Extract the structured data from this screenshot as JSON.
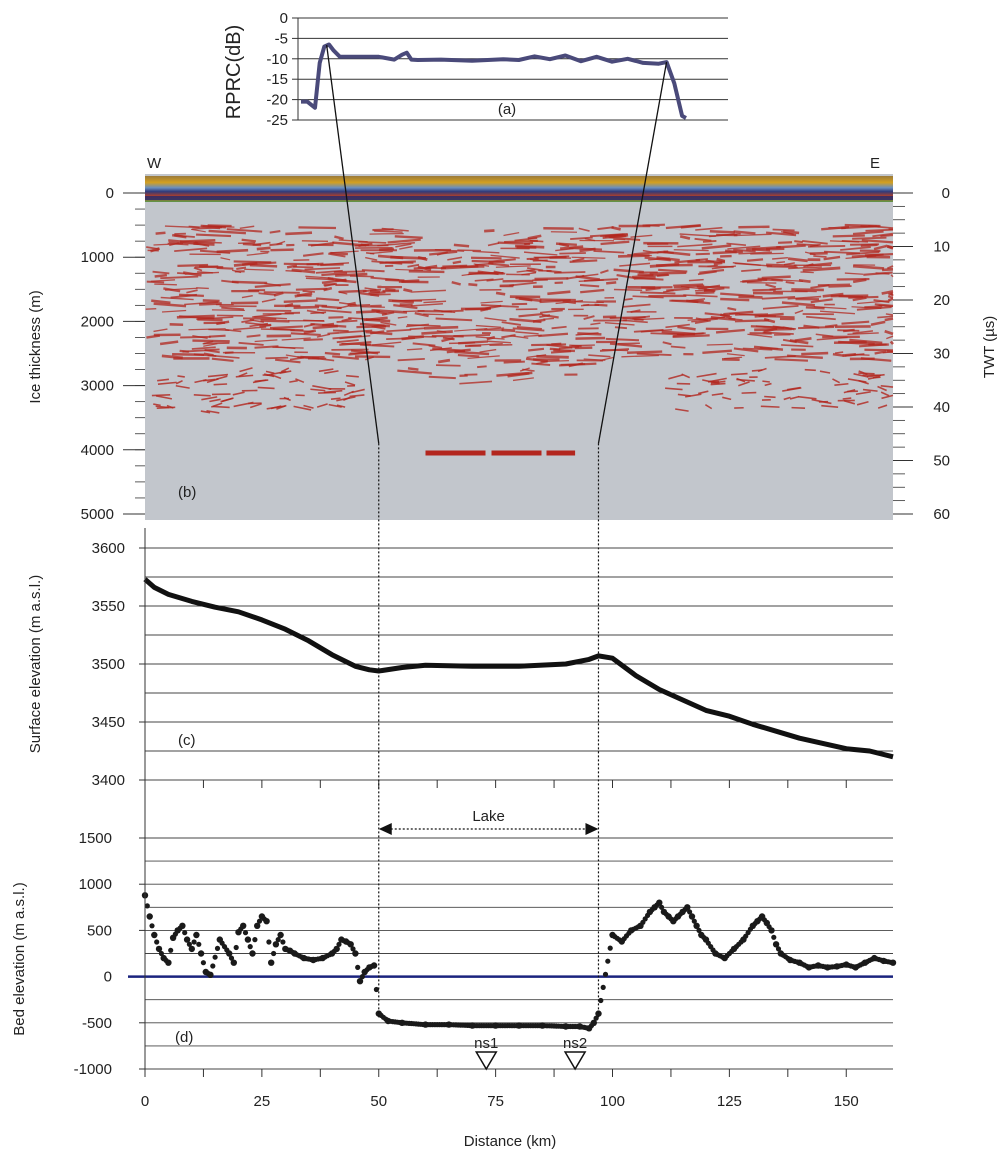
{
  "figure": {
    "label_a": "(a)",
    "label_b": "(b)",
    "label_c": "(c)",
    "label_d": "(d)",
    "west": "W",
    "east": "E",
    "lake_label": "Lake",
    "ns1": "ns1",
    "ns2": "ns2",
    "colors": {
      "rprc_line": "#4a4a7a",
      "radargram_bg": "#c2c6cc",
      "reflector": "#b3261e",
      "points": "#1a1a1a",
      "sea_level": "#1a237e"
    }
  },
  "chart_data": [
    {
      "type": "line",
      "panel": "a",
      "ylabel": "RPRC(dB)",
      "ylim": [
        -25,
        0
      ],
      "yticks": [
        "0",
        "-5",
        "-10",
        "-15",
        "-20",
        "-25"
      ],
      "x_km": [
        0,
        0.8,
        1.8,
        2.4,
        3.0,
        3.6,
        4.2,
        5.0,
        6.5,
        8,
        10,
        12,
        13,
        13.6,
        14.2,
        15,
        18,
        22,
        26,
        28,
        30,
        32,
        34,
        36,
        38,
        40,
        42,
        44,
        46,
        47,
        48,
        49,
        49.5
      ],
      "values": [
        -20.5,
        -20.5,
        -22,
        -11,
        -7,
        -6.5,
        -8,
        -9.5,
        -9.5,
        -9.5,
        -9.5,
        -10.2,
        -9,
        -8.5,
        -10.2,
        -10.3,
        -10.2,
        -10.5,
        -10.1,
        -10.3,
        -9.4,
        -10.1,
        -9.2,
        -10.6,
        -9.5,
        -10.7,
        -10,
        -11,
        -11.2,
        -10.8,
        -16,
        -24,
        -24.5
      ]
    },
    {
      "type": "heatmap",
      "panel": "b",
      "ylabel": "Ice thickness (m)",
      "ylabel_right": "TWT (µs)",
      "ylim": [
        0,
        5000
      ],
      "yticks": [
        "0",
        "1000",
        "2000",
        "3000",
        "4000",
        "5000"
      ],
      "yticks_right": [
        "0",
        "10",
        "20",
        "30",
        "40",
        "50",
        "60"
      ],
      "lake_reflector": {
        "x_range_km": [
          60,
          92
        ],
        "depth_m": 4050
      },
      "lake_edges": {
        "x_km": [
          50,
          97
        ],
        "depth_m": 3900
      }
    },
    {
      "type": "line",
      "panel": "c",
      "ylabel": "Surface elevation (m a.s.l.)",
      "ylim": [
        3400,
        3600
      ],
      "yticks": [
        "3600",
        "3550",
        "3500",
        "3450",
        "3400"
      ],
      "x": [
        0,
        2,
        5,
        10,
        15,
        20,
        25,
        30,
        35,
        40,
        45,
        48,
        50,
        55,
        60,
        70,
        80,
        90,
        95,
        97,
        100,
        105,
        110,
        120,
        125,
        130,
        140,
        150,
        155,
        160
      ],
      "values": [
        3573,
        3566,
        3560,
        3554,
        3549,
        3545,
        3538,
        3530,
        3520,
        3508,
        3498,
        3495,
        3494,
        3497,
        3499,
        3498,
        3498,
        3500,
        3504,
        3507,
        3505,
        3490,
        3478,
        3460,
        3455,
        3448,
        3436,
        3427,
        3425,
        3420
      ]
    },
    {
      "type": "scatter",
      "panel": "d",
      "xlabel": "Distance (km)",
      "ylabel": "Bed elevation (m  a.s.l.)",
      "xlim": [
        0,
        160
      ],
      "ylim": [
        -1000,
        1500
      ],
      "xticks": [
        "0",
        "25",
        "50",
        "75",
        "100",
        "125",
        "150"
      ],
      "yticks": [
        "1500",
        "1000",
        "500",
        "0",
        "-500",
        "-1000"
      ],
      "lake_x_km": [
        50,
        97
      ],
      "station_x_km": [
        73,
        92
      ],
      "x": [
        0,
        1,
        2,
        3,
        4,
        5,
        6,
        7,
        8,
        9,
        10,
        11,
        12,
        13,
        14,
        16,
        18,
        19,
        20,
        21,
        22,
        23,
        24,
        25,
        26,
        27,
        28,
        29,
        30,
        31,
        32,
        34,
        36,
        38,
        40,
        41,
        42,
        43,
        44,
        45,
        46,
        47,
        48,
        49,
        50,
        52,
        55,
        60,
        65,
        70,
        75,
        80,
        85,
        90,
        93,
        95,
        96,
        97,
        100,
        102,
        104,
        106,
        108,
        109,
        110,
        111,
        112,
        113,
        114,
        115,
        116,
        117,
        118,
        119,
        120,
        122,
        124,
        126,
        128,
        130,
        131,
        132,
        133,
        134,
        135,
        136,
        138,
        140,
        142,
        144,
        146,
        148,
        150,
        152,
        154,
        156,
        158,
        160
      ],
      "values": [
        880,
        650,
        450,
        300,
        200,
        150,
        420,
        500,
        550,
        400,
        300,
        450,
        250,
        50,
        20,
        400,
        250,
        150,
        480,
        550,
        400,
        250,
        550,
        650,
        600,
        150,
        350,
        450,
        300,
        280,
        250,
        200,
        180,
        200,
        250,
        300,
        400,
        380,
        350,
        250,
        -50,
        50,
        100,
        120,
        -400,
        -480,
        -500,
        -520,
        -520,
        -530,
        -530,
        -530,
        -530,
        -540,
        -540,
        -560,
        -500,
        -400,
        450,
        380,
        500,
        550,
        700,
        750,
        800,
        700,
        650,
        600,
        650,
        700,
        750,
        650,
        550,
        450,
        400,
        250,
        200,
        300,
        400,
        550,
        600,
        650,
        580,
        500,
        350,
        250,
        180,
        150,
        100,
        120,
        100,
        110,
        130,
        100,
        150,
        200,
        170,
        150
      ]
    }
  ]
}
